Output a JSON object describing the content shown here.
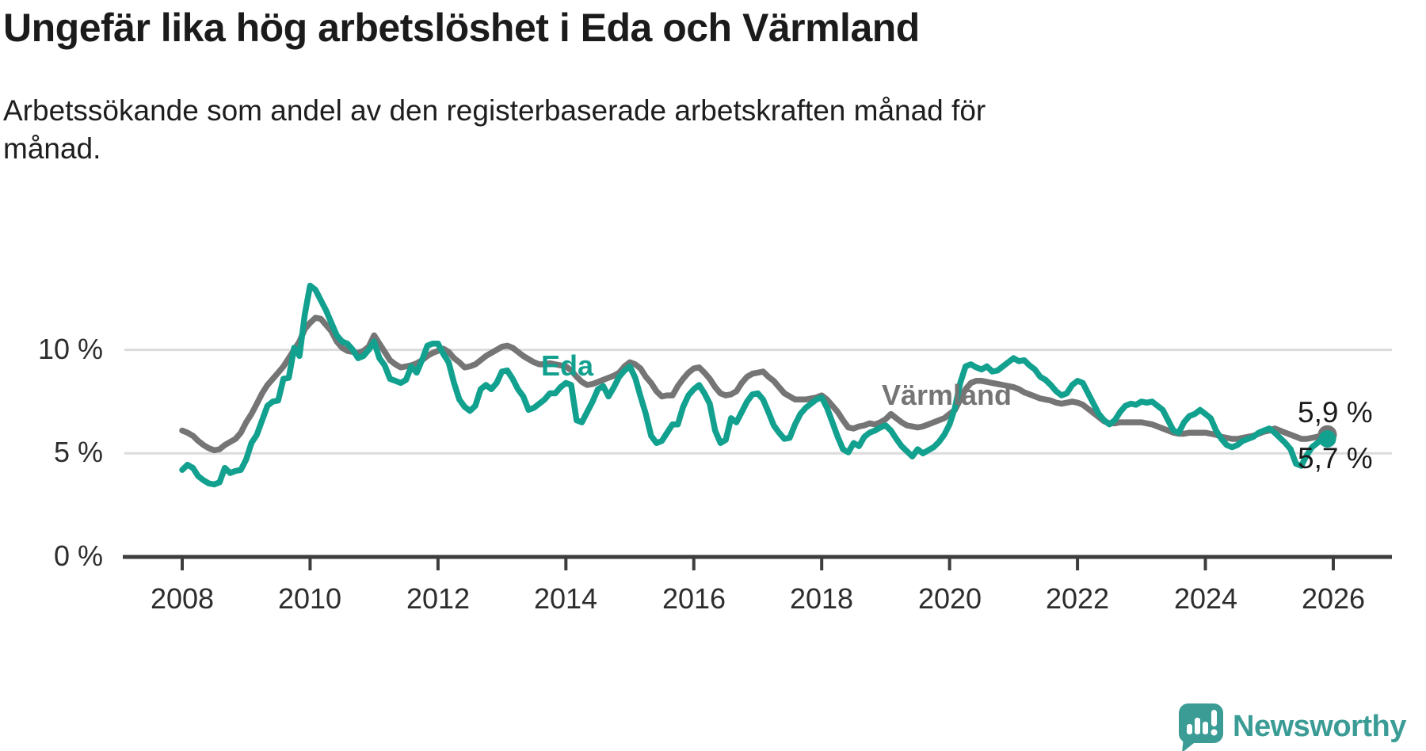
{
  "header": {
    "title": "Ungefär lika hög arbetslöshet i Eda och Värmland",
    "subtitle_lines": [
      "Arbetssökande som andel av den registerbaserade arbetskraften månad för",
      "månad."
    ]
  },
  "chart_data": {
    "type": "line",
    "title": "Ungefär lika hög arbetslöshet i Eda och Värmland",
    "subtitle": "Arbetssökande som andel av den registerbaserade arbetskraften månad för månad.",
    "xlabel": "",
    "ylabel": "",
    "x_axis": {
      "start_year": 2008,
      "start_month": 1,
      "frequency": "monthly",
      "end_year": 2025,
      "end_month": 11
    },
    "x_tick_labels": [
      "2008",
      "2010",
      "2012",
      "2014",
      "2016",
      "2018",
      "2020",
      "2022",
      "2024",
      "2026"
    ],
    "y_tick_labels": [
      "10 %",
      "5 %",
      "0 %"
    ],
    "y_gridline_values": [
      10,
      5
    ],
    "ylim": [
      0,
      13.5
    ],
    "grid": "horizontal-only",
    "legend": "inline-labels",
    "series": [
      {
        "name": "Värmland",
        "color": "#757575",
        "end_label": "5,9 %",
        "final_value": 5.9,
        "values": [
          6.1,
          6.0,
          5.85,
          5.6,
          5.4,
          5.25,
          5.15,
          5.2,
          5.4,
          5.55,
          5.7,
          6.0,
          6.5,
          6.9,
          7.4,
          7.9,
          8.3,
          8.6,
          8.9,
          9.2,
          9.6,
          10.0,
          10.4,
          11.0,
          11.3,
          11.55,
          11.5,
          11.2,
          10.9,
          10.4,
          10.1,
          9.95,
          9.9,
          9.85,
          9.95,
          10.15,
          10.7,
          10.3,
          9.9,
          9.5,
          9.3,
          9.15,
          9.2,
          9.25,
          9.35,
          9.5,
          9.7,
          9.85,
          9.95,
          10.05,
          9.9,
          9.6,
          9.4,
          9.15,
          9.2,
          9.3,
          9.5,
          9.7,
          9.85,
          10.0,
          10.15,
          10.2,
          10.1,
          9.9,
          9.7,
          9.55,
          9.4,
          9.3,
          9.3,
          9.35,
          9.3,
          9.25,
          9.2,
          9.0,
          8.7,
          8.45,
          8.3,
          8.35,
          8.45,
          8.55,
          8.65,
          8.75,
          8.9,
          9.2,
          9.4,
          9.3,
          9.1,
          8.7,
          8.4,
          8.0,
          7.75,
          7.8,
          7.8,
          8.25,
          8.6,
          8.9,
          9.1,
          9.15,
          8.9,
          8.6,
          8.2,
          7.9,
          7.8,
          7.85,
          8.0,
          8.4,
          8.7,
          8.85,
          8.9,
          8.95,
          8.7,
          8.5,
          8.2,
          7.9,
          7.75,
          7.6,
          7.6,
          7.6,
          7.65,
          7.7,
          7.8,
          7.6,
          7.3,
          7.0,
          6.6,
          6.25,
          6.2,
          6.3,
          6.35,
          6.45,
          6.4,
          6.5,
          6.65,
          6.9,
          6.7,
          6.5,
          6.35,
          6.3,
          6.25,
          6.3,
          6.4,
          6.5,
          6.6,
          6.7,
          6.9,
          7.1,
          7.6,
          8.1,
          8.4,
          8.5,
          8.5,
          8.45,
          8.4,
          8.35,
          8.3,
          8.25,
          8.2,
          8.1,
          7.95,
          7.85,
          7.75,
          7.65,
          7.6,
          7.55,
          7.45,
          7.4,
          7.45,
          7.5,
          7.45,
          7.35,
          7.15,
          6.95,
          6.75,
          6.55,
          6.45,
          6.45,
          6.5,
          6.5,
          6.5,
          6.5,
          6.5,
          6.45,
          6.4,
          6.3,
          6.2,
          6.1,
          6.0,
          5.95,
          5.95,
          6.0,
          6.0,
          6.0,
          6.0,
          5.95,
          5.9,
          5.8,
          5.75,
          5.7,
          5.7,
          5.75,
          5.8,
          5.85,
          5.95,
          6.05,
          6.1,
          6.2,
          6.1,
          6.0,
          5.9,
          5.8,
          5.7,
          5.7,
          5.75,
          5.8,
          5.9
        ]
      },
      {
        "name": "Eda",
        "color": "#12A08F",
        "end_label": "5,7 %",
        "final_value": 5.7,
        "values": [
          4.2,
          4.45,
          4.3,
          3.9,
          3.7,
          3.55,
          3.5,
          3.6,
          4.3,
          4.05,
          4.15,
          4.2,
          4.7,
          5.5,
          5.9,
          6.6,
          7.3,
          7.5,
          7.55,
          8.6,
          8.65,
          10.1,
          9.7,
          11.7,
          13.1,
          12.9,
          12.4,
          11.9,
          11.3,
          10.7,
          10.4,
          10.3,
          10.0,
          9.6,
          9.7,
          10.0,
          10.4,
          9.6,
          9.25,
          8.6,
          8.5,
          8.4,
          8.55,
          9.2,
          8.9,
          9.5,
          10.2,
          10.3,
          10.3,
          9.8,
          9.4,
          8.4,
          7.6,
          7.25,
          7.05,
          7.3,
          8.1,
          8.3,
          8.1,
          8.4,
          8.95,
          9.0,
          8.6,
          8.1,
          7.75,
          7.1,
          7.2,
          7.4,
          7.6,
          7.9,
          7.9,
          8.2,
          8.4,
          8.3,
          6.6,
          6.5,
          7.0,
          7.5,
          8.1,
          8.25,
          7.75,
          8.2,
          8.7,
          9.0,
          9.2,
          8.65,
          7.75,
          6.9,
          5.85,
          5.5,
          5.6,
          6.0,
          6.4,
          6.4,
          7.25,
          7.8,
          8.1,
          8.3,
          7.9,
          7.4,
          6.1,
          5.5,
          5.65,
          6.7,
          6.5,
          7.0,
          7.5,
          7.85,
          7.9,
          7.6,
          7.0,
          6.35,
          6.0,
          5.7,
          5.75,
          6.4,
          6.9,
          7.2,
          7.4,
          7.6,
          7.7,
          7.2,
          6.5,
          5.8,
          5.2,
          5.05,
          5.5,
          5.35,
          5.8,
          6.0,
          6.1,
          6.25,
          6.35,
          6.1,
          5.7,
          5.35,
          5.1,
          4.85,
          5.2,
          5.0,
          5.15,
          5.3,
          5.55,
          5.9,
          6.4,
          7.2,
          8.4,
          9.2,
          9.3,
          9.15,
          9.05,
          9.2,
          8.95,
          9.0,
          9.2,
          9.4,
          9.6,
          9.45,
          9.5,
          9.25,
          9.05,
          8.7,
          8.55,
          8.3,
          8.0,
          7.8,
          7.9,
          8.3,
          8.5,
          8.4,
          7.9,
          7.4,
          6.9,
          6.6,
          6.4,
          6.6,
          7.0,
          7.3,
          7.4,
          7.35,
          7.5,
          7.45,
          7.5,
          7.3,
          7.1,
          6.6,
          6.1,
          6.0,
          6.5,
          6.8,
          6.9,
          7.1,
          6.9,
          6.7,
          6.1,
          5.7,
          5.4,
          5.3,
          5.4,
          5.6,
          5.7,
          5.8,
          6.0,
          6.1,
          6.2,
          6.0,
          5.75,
          5.5,
          5.2,
          4.5,
          4.4,
          4.9,
          5.3,
          5.5,
          5.7
        ]
      }
    ]
  },
  "footer": {
    "brand": "Newsworthy"
  }
}
